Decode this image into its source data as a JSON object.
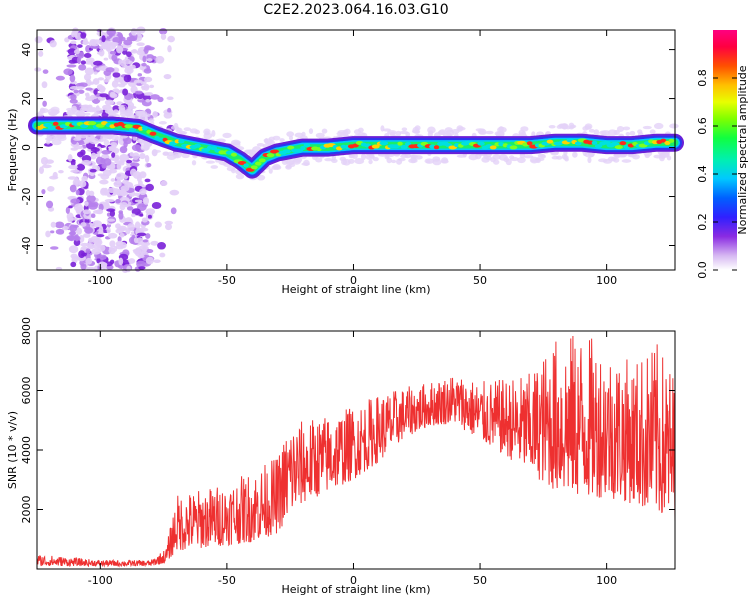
{
  "title": "C2E2.2023.064.16.03.G10",
  "chart_data": [
    {
      "type": "heatmap",
      "xlabel": "Height of straight line (km)",
      "ylabel": "Frequency (Hz)",
      "xlim": [
        -125,
        127
      ],
      "ylim": [
        -50,
        48
      ],
      "xticks": [
        -100,
        -50,
        0,
        50,
        100
      ],
      "yticks": [
        -40,
        -20,
        0,
        20,
        40
      ],
      "grid": false,
      "ridge_frequency": {
        "x": [
          -125,
          -110,
          -95,
          -85,
          -78,
          -70,
          -60,
          -50,
          -45,
          -40,
          -35,
          -30,
          -20,
          -10,
          0,
          10,
          20,
          30,
          40,
          50,
          60,
          70,
          80,
          90,
          100,
          110,
          120,
          127
        ],
        "y": [
          9,
          9,
          9,
          8,
          5,
          2,
          0,
          -2,
          -5,
          -9,
          -4,
          -2,
          0,
          0,
          1,
          1,
          1,
          1,
          1,
          1,
          1,
          1,
          2,
          2,
          1,
          1,
          2,
          2
        ]
      },
      "colorbar": {
        "label": "Normalized spectral amplitude",
        "range": [
          0,
          1
        ],
        "ticks": [
          "0.0",
          "0.2",
          "0.4",
          "0.6",
          "0.8"
        ]
      }
    },
    {
      "type": "line",
      "xlabel": "Height of straight line (km)",
      "ylabel": "SNR (10 * v/v)",
      "xlim": [
        -125,
        127
      ],
      "ylim": [
        0,
        8000
      ],
      "xticks": [
        -100,
        -50,
        0,
        50,
        100
      ],
      "yticks": [
        2000,
        4000,
        6000,
        8000
      ],
      "color": "#ee3030",
      "grid": false,
      "envelope": {
        "x": [
          -125,
          -100,
          -80,
          -74,
          -70,
          -60,
          -50,
          -40,
          -30,
          -25,
          -20,
          -10,
          0,
          10,
          20,
          30,
          40,
          50,
          60,
          70,
          80,
          90,
          100,
          110,
          120,
          127
        ],
        "low": [
          100,
          100,
          100,
          200,
          600,
          700,
          800,
          900,
          1200,
          1800,
          2200,
          2600,
          3000,
          3600,
          4400,
          4800,
          4900,
          4300,
          3800,
          3200,
          2600,
          2400,
          2400,
          2200,
          1800,
          1600
        ],
        "high": [
          500,
          300,
          300,
          700,
          2500,
          2700,
          2900,
          3300,
          3800,
          5000,
          5000,
          5200,
          5500,
          5900,
          6100,
          6300,
          6600,
          6300,
          6400,
          6600,
          7800,
          8000,
          7500,
          7000,
          7600,
          6600
        ]
      }
    }
  ]
}
